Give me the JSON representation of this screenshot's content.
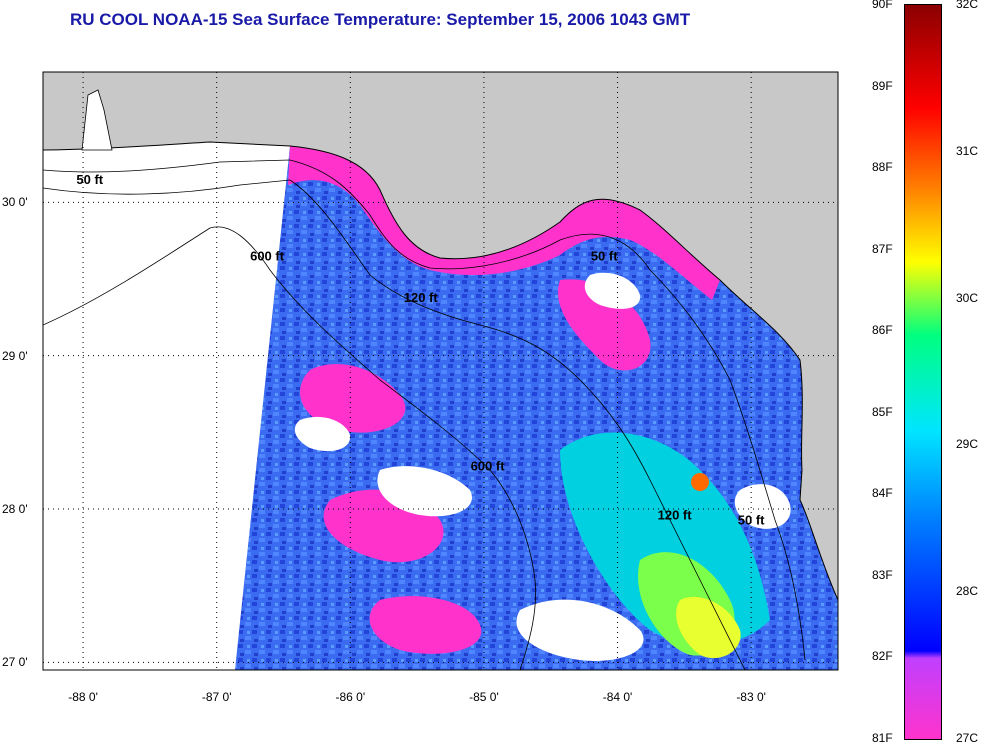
{
  "title": "RU COOL  NOAA-15  Sea Surface Temperature:  September 15, 2006 1043 GMT",
  "map": {
    "lon_range": [
      -88.3,
      -82.35
    ],
    "lat_range": [
      26.95,
      30.85
    ],
    "lat_ticks": [
      {
        "value": 30,
        "label": "30 0'"
      },
      {
        "value": 29,
        "label": "29 0'"
      },
      {
        "value": 28,
        "label": "28 0'"
      },
      {
        "value": 27,
        "label": "27 0'"
      }
    ],
    "lon_ticks": [
      {
        "value": -88,
        "label": "-88 0'"
      },
      {
        "value": -87,
        "label": "-87 0'"
      },
      {
        "value": -86,
        "label": "-86 0'"
      },
      {
        "value": -85,
        "label": "-85 0'"
      },
      {
        "value": -84,
        "label": "-84 0'"
      },
      {
        "value": -83,
        "label": "-83 0'"
      }
    ],
    "contour_labels": [
      {
        "text": "50 ft",
        "lon": -88.05,
        "lat": 30.12
      },
      {
        "text": "600 ft",
        "lon": -86.75,
        "lat": 29.62
      },
      {
        "text": "120 ft",
        "lon": -85.6,
        "lat": 29.35
      },
      {
        "text": "50 ft",
        "lon": -84.2,
        "lat": 29.62
      },
      {
        "text": "600 ft",
        "lon": -85.1,
        "lat": 28.25
      },
      {
        "text": "120 ft",
        "lon": -83.7,
        "lat": 27.93
      },
      {
        "text": "50 ft",
        "lon": -83.1,
        "lat": 27.9
      }
    ],
    "colors": {
      "land": "#c8c8c8",
      "nodata": "#ffffff",
      "ocean_base": "#3a6bf0",
      "nearshore": "#ff33cc"
    }
  },
  "colorbar": {
    "f_labels": [
      "90F",
      "89F",
      "88F",
      "87F",
      "86F",
      "85F",
      "84F",
      "83F",
      "82F",
      "81F"
    ],
    "c_labels": [
      "32C",
      "31C",
      "30C",
      "29C",
      "28C",
      "27C"
    ],
    "stops": [
      "#ff33cc",
      "#8a2be2",
      "#0000ff",
      "#0080ff",
      "#00e5ff",
      "#00ff80",
      "#ffff00",
      "#ff8000",
      "#ff0000",
      "#8b0000"
    ]
  }
}
